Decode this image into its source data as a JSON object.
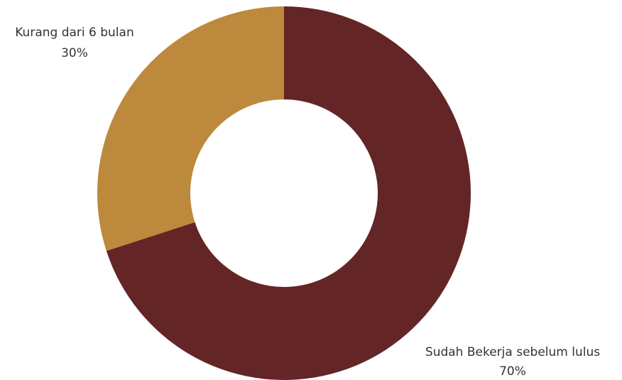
{
  "chart_data": {
    "type": "pie",
    "donut": true,
    "start_angle_deg": 0,
    "direction": "clockwise",
    "slices": [
      {
        "label": "Sudah Bekerja sebelum lulus",
        "value": 70,
        "value_label": "70%",
        "color": "#642526"
      },
      {
        "label": "Kurang dari 6 bulan",
        "value": 30,
        "value_label": "30%",
        "color": "#bd893c"
      }
    ],
    "legend": "none"
  }
}
